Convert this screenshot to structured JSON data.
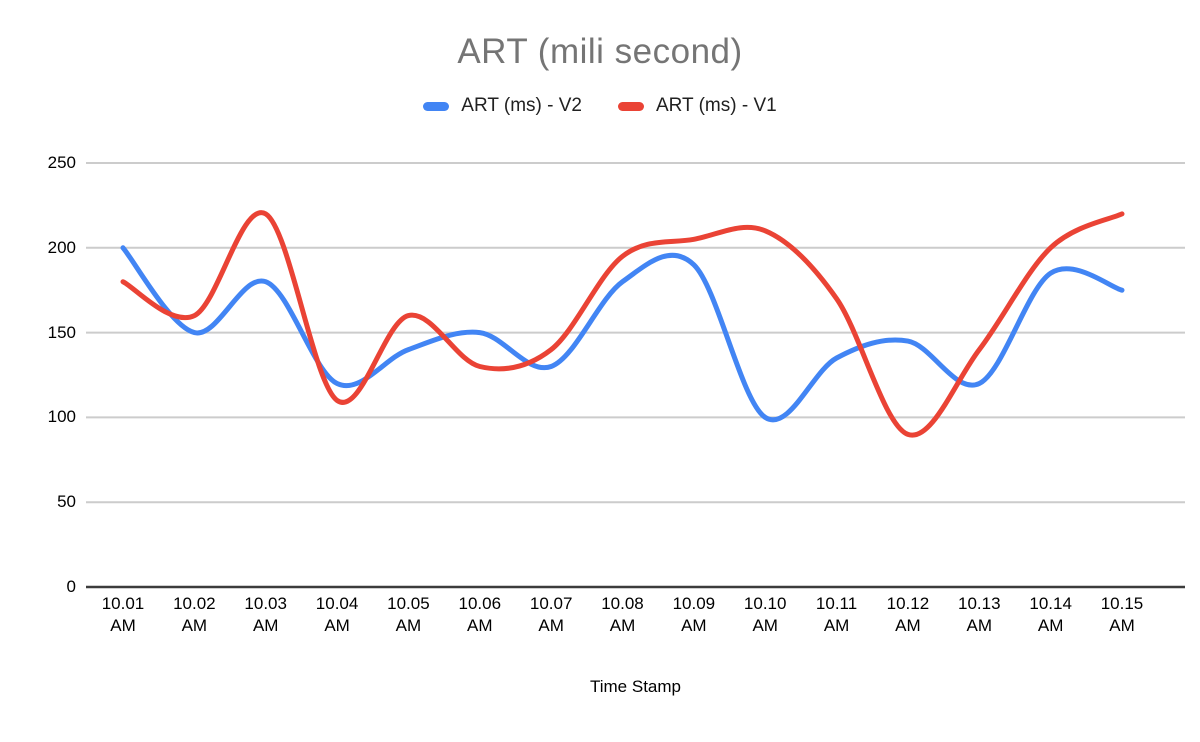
{
  "chart_data": {
    "type": "line",
    "curve": "smooth",
    "title": "ART (mili second)",
    "xlabel": "Time Stamp",
    "ylabel": "",
    "categories": [
      "10.01 AM",
      "10.02 AM",
      "10.03 AM",
      "10.04 AM",
      "10.05 AM",
      "10.06 AM",
      "10.07 AM",
      "10.08 AM",
      "10.09 AM",
      "10.10 AM",
      "10.11 AM",
      "10.12 AM",
      "10.13 AM",
      "10.14 AM",
      "10.15 AM"
    ],
    "series": [
      {
        "name": "ART (ms) - V2",
        "color": "#4285F4",
        "values": [
          200,
          150,
          180,
          120,
          140,
          150,
          130,
          180,
          190,
          100,
          135,
          145,
          120,
          185,
          175
        ]
      },
      {
        "name": "ART (ms) - V1",
        "color": "#EA4335",
        "values": [
          180,
          160,
          220,
          110,
          160,
          130,
          140,
          195,
          205,
          210,
          170,
          90,
          140,
          200,
          220
        ]
      }
    ],
    "ylim": [
      0,
      250
    ],
    "yticks": [
      0,
      50,
      100,
      150,
      200,
      250
    ],
    "grid": true,
    "legend_position": "top"
  },
  "colors": {
    "title_text": "#757575",
    "legend_text": "#212121",
    "axis_text": "#000000",
    "gridline": "#cccccc",
    "baseline": "#3c3c3c",
    "background": "#ffffff"
  }
}
